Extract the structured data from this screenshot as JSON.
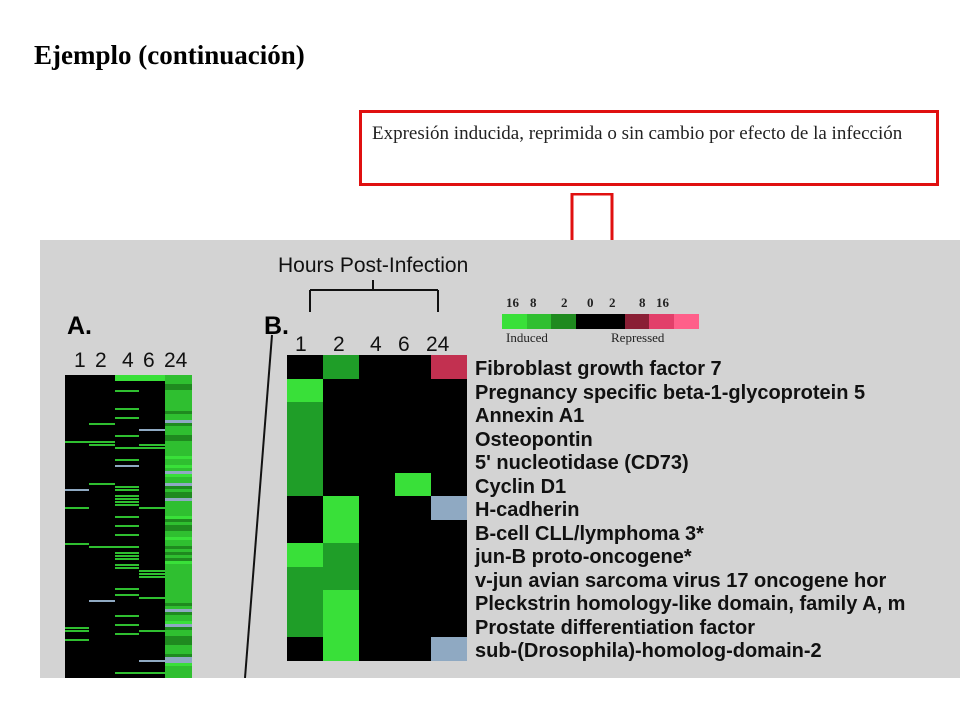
{
  "slide": {
    "title": "Ejemplo (continuación)",
    "callout": "Expresión inducida, reprimida o sin cambio por efecto de la infección"
  },
  "colors": {
    "callout_border": "#e01010",
    "induced": "#39e039",
    "induced_dark": "#1f9e28",
    "repressed": "#c23050",
    "repressed_light": "#ff5f8a",
    "no_change": "#000000",
    "missing": "#8fa9c2"
  },
  "figure": {
    "title": "Hours Post-Infection",
    "panel_a": {
      "label": "A.",
      "hours": [
        "1",
        "2",
        "4",
        "6",
        "24"
      ]
    },
    "panel_b": {
      "label": "B.",
      "hours": [
        "1",
        "2",
        "4",
        "6",
        "24"
      ]
    },
    "legend": {
      "numbers": [
        "16",
        "8",
        "2",
        "0",
        "2",
        "8",
        "16"
      ],
      "induced_label": "Induced",
      "repressed_label": "Repressed",
      "colors": [
        "#39e039",
        "#2fbf30",
        "#1f8a1f",
        "#000000",
        "#000000",
        "#8a1f35",
        "#e23f6a",
        "#ff5f8a"
      ]
    },
    "genes": [
      "Fibroblast growth factor 7",
      "Pregnancy specific beta-1-glycoprotein 5",
      "Annexin A1",
      "Osteopontin",
      "5' nucleotidase (CD73)",
      "Cyclin D1",
      "H-cadherin",
      "B-cell CLL/lymphoma 3*",
      "jun-B proto-oncogene*",
      "v-jun avian sarcoma virus 17 oncogene hor",
      "Pleckstrin homology-like domain, family A, m",
      "Prostate differentiation factor",
      "sub-(Drosophila)-homolog-domain-2"
    ],
    "heatmap": [
      [
        "k",
        "g",
        "k",
        "k",
        "r"
      ],
      [
        "G",
        "k",
        "k",
        "k",
        "k"
      ],
      [
        "g",
        "k",
        "k",
        "k",
        "k"
      ],
      [
        "g",
        "k",
        "k",
        "k",
        "k"
      ],
      [
        "g",
        "k",
        "k",
        "k",
        "k"
      ],
      [
        "g",
        "k",
        "k",
        "G",
        "k"
      ],
      [
        "k",
        "G",
        "k",
        "k",
        "b"
      ],
      [
        "k",
        "G",
        "k",
        "k",
        "k"
      ],
      [
        "G",
        "g",
        "k",
        "k",
        "k"
      ],
      [
        "g",
        "g",
        "k",
        "k",
        "k"
      ],
      [
        "g",
        "G",
        "k",
        "k",
        "k"
      ],
      [
        "g",
        "G",
        "k",
        "k",
        "k"
      ],
      [
        "k",
        "G",
        "k",
        "k",
        "b"
      ]
    ]
  }
}
